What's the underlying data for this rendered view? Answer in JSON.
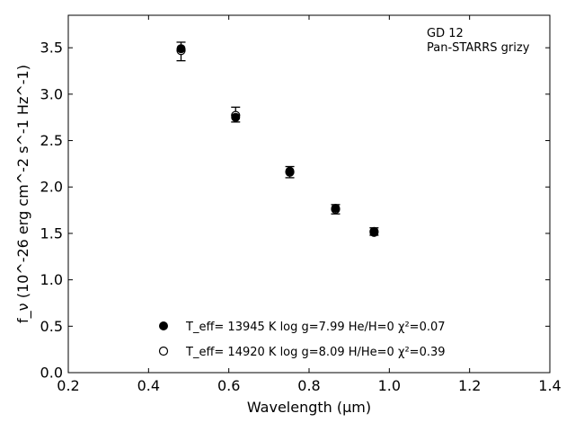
{
  "chart_data": {
    "type": "scatter",
    "xlabel": "Wavelength (μm)",
    "ylabel": "f_ν (10^-26 erg cm^-2 s^-1 Hz^-1)",
    "xlim": [
      0.2,
      1.4
    ],
    "ylim": [
      0.0,
      3.85
    ],
    "xticks": [
      "0.2",
      "0.4",
      "0.6",
      "0.8",
      "1.0",
      "1.2",
      "1.4"
    ],
    "yticks": [
      "0.0",
      "0.5",
      "1.0",
      "1.5",
      "2.0",
      "2.5",
      "3.0",
      "3.5"
    ],
    "grid": false,
    "annotation": [
      "GD 12",
      "Pan-STARRS grizy"
    ],
    "observed": [
      {
        "x": 0.481,
        "y": 3.46,
        "err_low": 0.1,
        "err_high": 0.1
      },
      {
        "x": 0.617,
        "y": 2.78,
        "err_low": 0.08,
        "err_high": 0.08
      },
      {
        "x": 0.752,
        "y": 2.16,
        "err_low": 0.06,
        "err_high": 0.06
      },
      {
        "x": 0.866,
        "y": 1.76,
        "err_low": 0.05,
        "err_high": 0.05
      },
      {
        "x": 0.962,
        "y": 1.52,
        "err_low": 0.04,
        "err_high": 0.04
      }
    ],
    "model_he": {
      "label": "T_eff= 13945 K  log g=7.99  He/H=0  χ²=0.07",
      "marker": "filled-circle",
      "points": [
        {
          "x": 0.481,
          "y": 3.49
        },
        {
          "x": 0.617,
          "y": 2.75
        },
        {
          "x": 0.752,
          "y": 2.17
        },
        {
          "x": 0.866,
          "y": 1.77
        },
        {
          "x": 0.962,
          "y": 1.51
        }
      ]
    },
    "model_h": {
      "label": "T_eff= 14920 K  log g=8.09  H/He=0  χ²=0.39",
      "marker": "open-circle",
      "points": [
        {
          "x": 0.481,
          "y": 3.47
        },
        {
          "x": 0.617,
          "y": 2.77
        },
        {
          "x": 0.752,
          "y": 2.16
        },
        {
          "x": 0.866,
          "y": 1.76
        },
        {
          "x": 0.962,
          "y": 1.52
        }
      ]
    },
    "colors": {
      "axis": "#000000",
      "marker": "#000000"
    }
  }
}
